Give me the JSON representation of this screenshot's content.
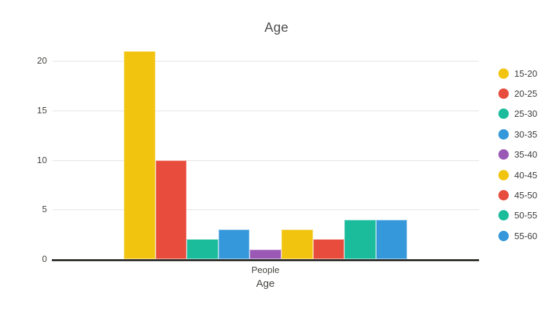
{
  "chart_data": {
    "type": "bar",
    "title": "Age",
    "xlabel": "Age",
    "ylabel": "",
    "categories": [
      "People"
    ],
    "series": [
      {
        "name": "15-20",
        "color": "#f1c40f",
        "values": [
          21
        ]
      },
      {
        "name": "20-25",
        "color": "#e74c3c",
        "values": [
          10
        ]
      },
      {
        "name": "25-30",
        "color": "#1abc9c",
        "values": [
          2
        ]
      },
      {
        "name": "30-35",
        "color": "#3498db",
        "values": [
          3
        ]
      },
      {
        "name": "35-40",
        "color": "#9b59b6",
        "values": [
          1
        ]
      },
      {
        "name": "40-45",
        "color": "#f1c40f",
        "values": [
          3
        ]
      },
      {
        "name": "45-50",
        "color": "#e74c3c",
        "values": [
          2
        ]
      },
      {
        "name": "50-55",
        "color": "#1abc9c",
        "values": [
          4
        ]
      },
      {
        "name": "55-60",
        "color": "#3498db",
        "values": [
          4
        ]
      }
    ],
    "yticks": [
      0,
      5,
      10,
      15,
      20
    ],
    "ylim": [
      0,
      22
    ],
    "grid": true,
    "legend_position": "right",
    "title_color": "#4d4d4d",
    "tick_color": "#444440",
    "grid_color": "#e3e3e3",
    "axis_color": "#333330"
  }
}
